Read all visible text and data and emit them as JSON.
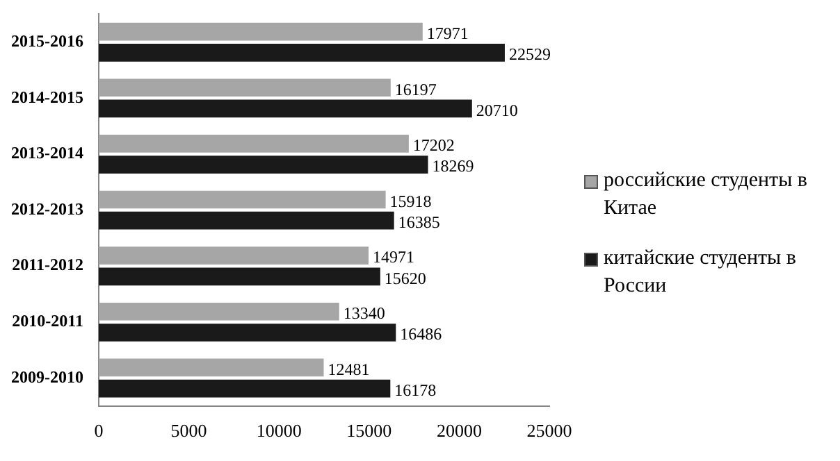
{
  "chart_data": {
    "type": "bar",
    "orientation": "horizontal",
    "categories": [
      "2015-2016",
      "2014-2015",
      "2013-2014",
      "2012-2013",
      "2011-2012",
      "2010-2011",
      "2009-2010"
    ],
    "series": [
      {
        "name": "российские студенты в Китае",
        "color": "#a6a6a6",
        "values": [
          17971,
          16197,
          17202,
          15918,
          14971,
          13340,
          12481
        ]
      },
      {
        "name": "китайские студенты в России",
        "color": "#1a1a1a",
        "values": [
          22529,
          20710,
          18269,
          16385,
          15620,
          16486,
          16178
        ]
      }
    ],
    "xlim": [
      0,
      25000
    ],
    "xticks": [
      0,
      5000,
      10000,
      15000,
      20000,
      25000
    ],
    "data_labels": true,
    "legend": "right",
    "grid": false
  }
}
